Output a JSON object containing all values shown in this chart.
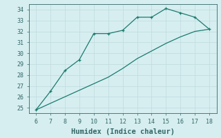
{
  "xlabel": "Humidex (Indice chaleur)",
  "bg_color": "#d6eef0",
  "line_color": "#1a7a6e",
  "grid_color": "#c2dde0",
  "xlim": [
    5.5,
    18.5
  ],
  "ylim": [
    24.5,
    34.5
  ],
  "xticks": [
    6,
    7,
    8,
    9,
    10,
    11,
    12,
    13,
    14,
    15,
    16,
    17,
    18
  ],
  "yticks": [
    25,
    26,
    27,
    28,
    29,
    30,
    31,
    32,
    33,
    34
  ],
  "upper_x": [
    6,
    7,
    8,
    9,
    10,
    11,
    12,
    13,
    14,
    15,
    16,
    17,
    18
  ],
  "upper_y": [
    24.8,
    26.5,
    28.4,
    29.4,
    31.8,
    31.8,
    32.1,
    33.3,
    33.3,
    34.1,
    33.7,
    33.3,
    32.2
  ],
  "lower_x": [
    6,
    10,
    11,
    12,
    13,
    14,
    15,
    16,
    17,
    18
  ],
  "lower_y": [
    24.8,
    27.2,
    27.8,
    28.6,
    29.5,
    30.2,
    30.9,
    31.5,
    32.0,
    32.2
  ],
  "tick_fontsize": 6.0,
  "xlabel_fontsize": 7.5
}
